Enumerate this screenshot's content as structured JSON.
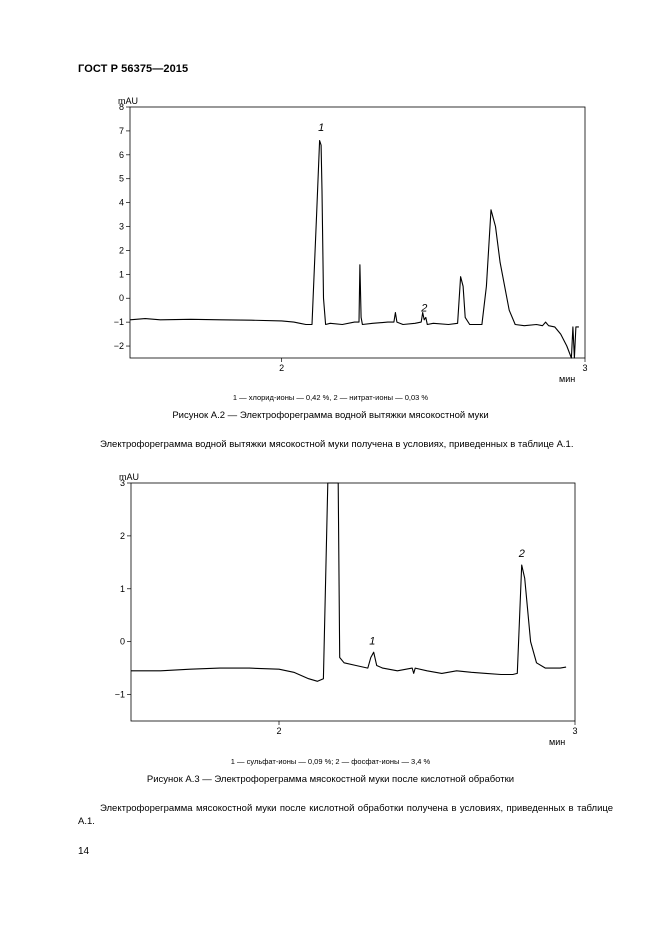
{
  "header": {
    "title": "ГОСТ Р 56375—2015"
  },
  "figure_a2": {
    "legend": "1 — хлорид-ионы — 0,42 %, 2 — нитрат-ионы — 0,03 %",
    "caption": "Рисунок А.2 — Электрофореграмма водной вытяжки мясокостной муки"
  },
  "paragraph1": "Электрофореграмма водной вытяжки мясокостной муки получена в условиях, приведенных в таблице А.1.",
  "figure_a3": {
    "legend": "1 — сульфат-ионы — 0,09 %; 2 — фосфат-ионы — 3,4 %",
    "caption": "Рисунок А.3 — Электрофореграмма мясокостной муки после кислотной обработки"
  },
  "paragraph2": "Электрофореграмма мясокостной муки после кислотной обработки получена в условиях, приведенных в таблице А.1.",
  "page_number": "14",
  "chart_data": [
    {
      "type": "line",
      "ylabel": "mAU",
      "xlabel": "мин",
      "xlim": [
        1.5,
        3.0
      ],
      "ylim": [
        -2.5,
        8
      ],
      "yticks": [
        -2,
        -1,
        0,
        1,
        2,
        3,
        4,
        5,
        6,
        7,
        8
      ],
      "xticks": [
        2,
        3
      ],
      "grid": false,
      "annotations": [
        {
          "text": "1",
          "x": 2.13,
          "y": 7.0
        },
        {
          "text": "2",
          "x": 2.47,
          "y": -0.55
        }
      ],
      "series": [
        {
          "x": [
            1.5,
            1.55,
            1.6,
            1.7,
            1.8,
            1.9,
            2.0,
            2.04,
            2.06,
            2.08,
            2.1,
            2.115,
            2.125,
            2.13,
            2.133,
            2.138,
            2.145,
            2.16,
            2.2,
            2.24,
            2.255,
            2.258,
            2.262,
            2.266,
            2.3,
            2.35,
            2.37,
            2.375,
            2.38,
            2.4,
            2.44,
            2.46,
            2.465,
            2.47,
            2.475,
            2.48,
            2.5,
            2.55,
            2.58,
            2.59,
            2.598,
            2.605,
            2.62,
            2.66,
            2.675,
            2.69,
            2.705,
            2.72,
            2.75,
            2.77,
            2.8,
            2.84,
            2.86,
            2.87,
            2.88,
            2.9,
            2.92,
            2.94,
            2.955,
            2.96,
            2.965,
            2.97,
            2.98
          ],
          "y": [
            -0.9,
            -0.85,
            -0.9,
            -0.88,
            -0.9,
            -0.92,
            -0.95,
            -1.0,
            -1.05,
            -1.1,
            -1.1,
            3.5,
            6.6,
            6.4,
            4.5,
            0.0,
            -1.1,
            -1.05,
            -1.1,
            -1.0,
            -1.0,
            1.4,
            -0.8,
            -1.1,
            -1.05,
            -1.0,
            -1.0,
            -0.6,
            -1.0,
            -1.1,
            -1.05,
            -1.0,
            -0.6,
            -0.9,
            -0.8,
            -1.1,
            -1.05,
            -1.1,
            -1.05,
            0.9,
            0.5,
            -0.8,
            -1.1,
            -1.1,
            0.5,
            3.7,
            3.0,
            1.5,
            -0.5,
            -1.1,
            -1.15,
            -1.1,
            -1.15,
            -1.0,
            -1.15,
            -1.2,
            -1.5,
            -2.0,
            -2.5,
            -1.2,
            -2.5,
            -1.2,
            -1.2
          ]
        }
      ]
    },
    {
      "type": "line",
      "ylabel": "mAU",
      "xlabel": "мин",
      "xlim": [
        1.5,
        3.0
      ],
      "ylim": [
        -1.5,
        3
      ],
      "yticks": [
        -1,
        0,
        1,
        2,
        3
      ],
      "xticks": [
        2,
        3
      ],
      "grid": false,
      "annotations": [
        {
          "text": "1",
          "x": 2.315,
          "y": -0.05
        },
        {
          "text": "2",
          "x": 2.82,
          "y": 1.6
        }
      ],
      "series": [
        {
          "x": [
            1.5,
            1.6,
            1.7,
            1.8,
            1.9,
            2.0,
            2.05,
            2.1,
            2.13,
            2.15,
            2.165,
            2.17,
            2.175,
            2.185,
            2.195,
            2.2,
            2.205,
            2.22,
            2.26,
            2.3,
            2.31,
            2.32,
            2.33,
            2.35,
            2.4,
            2.45,
            2.455,
            2.46,
            2.5,
            2.55,
            2.6,
            2.65,
            2.7,
            2.75,
            2.79,
            2.805,
            2.82,
            2.83,
            2.85,
            2.87,
            2.9,
            2.95,
            2.97
          ],
          "y": [
            -0.55,
            -0.55,
            -0.52,
            -0.5,
            -0.5,
            -0.52,
            -0.58,
            -0.7,
            -0.75,
            -0.7,
            3.0,
            3.0,
            3.0,
            3.0,
            3.0,
            3.0,
            -0.3,
            -0.4,
            -0.45,
            -0.5,
            -0.3,
            -0.2,
            -0.45,
            -0.5,
            -0.55,
            -0.5,
            -0.6,
            -0.5,
            -0.55,
            -0.6,
            -0.55,
            -0.58,
            -0.6,
            -0.62,
            -0.62,
            -0.6,
            1.45,
            1.2,
            0.0,
            -0.4,
            -0.5,
            -0.5,
            -0.48
          ]
        }
      ]
    }
  ]
}
